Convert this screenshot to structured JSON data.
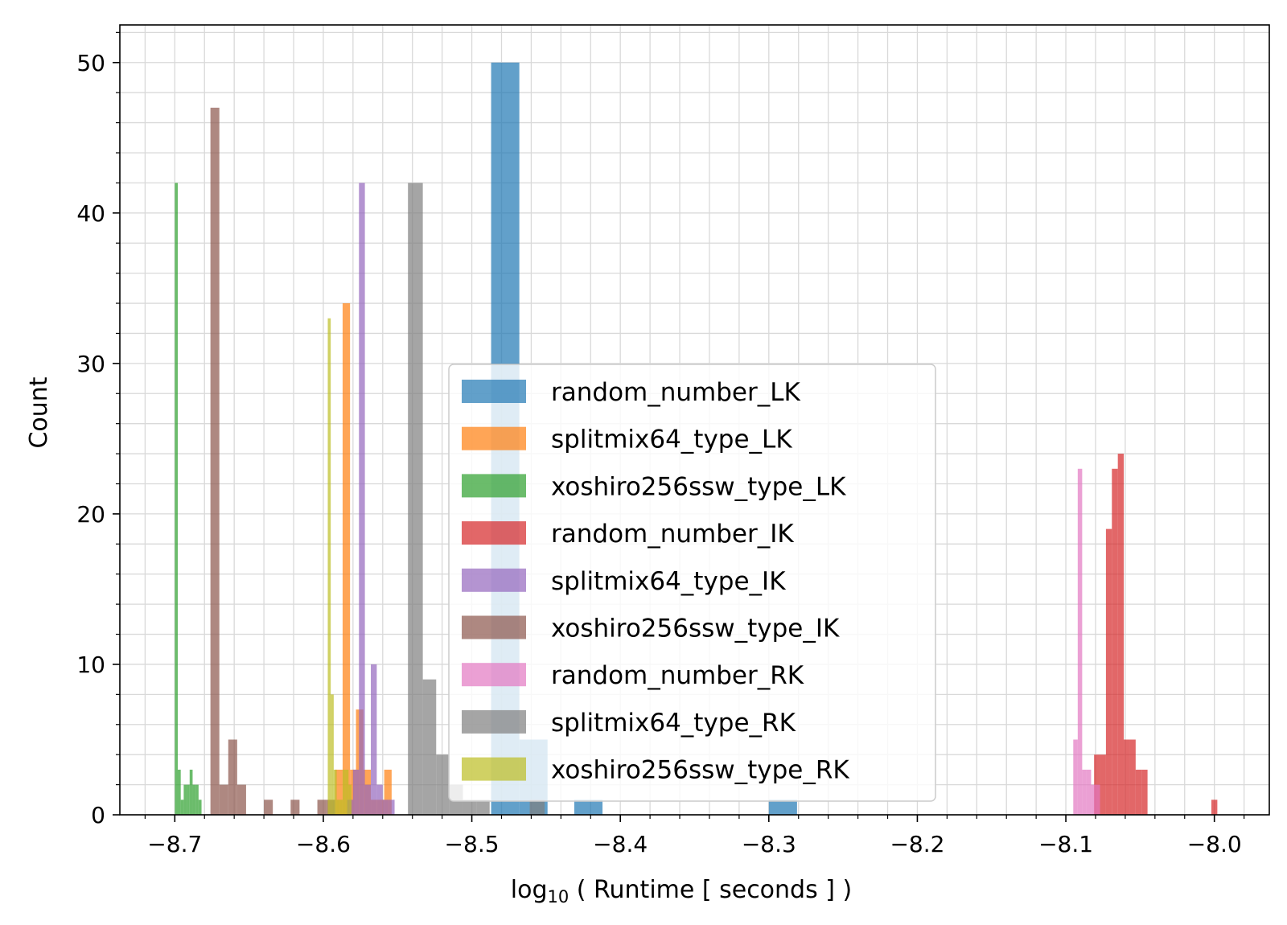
{
  "chart_data": {
    "type": "bar",
    "title": "",
    "xlabel": "log",
    "xlabel_sub": "10",
    "xlabel_rest": " ( Runtime [ seconds ] )",
    "ylabel": "Count",
    "xlim": [
      -8.737,
      -7.963
    ],
    "ylim": [
      0,
      52.5
    ],
    "xticks": [
      -8.7,
      -8.6,
      -8.5,
      -8.4,
      -8.3,
      -8.2,
      -8.1,
      -8.0
    ],
    "xtick_labels": [
      "−8.7",
      "−8.6",
      "−8.5",
      "−8.4",
      "−8.3",
      "−8.2",
      "−8.1",
      "−8.0"
    ],
    "yticks": [
      0,
      10,
      20,
      30,
      40,
      50
    ],
    "ytick_labels": [
      "0",
      "10",
      "20",
      "30",
      "40",
      "50"
    ],
    "grid": true,
    "legend_position": "center",
    "series": [
      {
        "name": "random_number_LK",
        "color": "#1f77b4",
        "bins": [
          [
            -8.487,
            -8.468,
            50
          ],
          [
            -8.468,
            -8.449,
            5
          ],
          [
            -8.431,
            -8.412,
            1
          ],
          [
            -8.3,
            -8.281,
            1
          ]
        ]
      },
      {
        "name": "splitmix64_type_LK",
        "color": "#ff7f0e",
        "bins": [
          [
            -8.592,
            -8.587,
            3
          ],
          [
            -8.587,
            -8.582,
            34
          ],
          [
            -8.582,
            -8.578,
            3
          ],
          [
            -8.578,
            -8.573,
            7
          ],
          [
            -8.573,
            -8.568,
            3
          ],
          [
            -8.568,
            -8.564,
            1
          ],
          [
            -8.564,
            -8.559,
            1
          ],
          [
            -8.559,
            -8.554,
            3
          ]
        ]
      },
      {
        "name": "xoshiro256ssw_type_LK",
        "color": "#2ca02c",
        "bins": [
          [
            -8.7,
            -8.698,
            42
          ],
          [
            -8.698,
            -8.696,
            3
          ],
          [
            -8.696,
            -8.694,
            1
          ],
          [
            -8.694,
            -8.692,
            2
          ],
          [
            -8.692,
            -8.69,
            2
          ],
          [
            -8.69,
            -8.688,
            3
          ],
          [
            -8.688,
            -8.686,
            2
          ],
          [
            -8.686,
            -8.684,
            2
          ],
          [
            -8.684,
            -8.682,
            1
          ]
        ]
      },
      {
        "name": "random_number_IK",
        "color": "#d62728",
        "bins": [
          [
            -8.081,
            -8.077,
            4
          ],
          [
            -8.077,
            -8.073,
            4
          ],
          [
            -8.073,
            -8.069,
            19
          ],
          [
            -8.069,
            -8.065,
            23
          ],
          [
            -8.065,
            -8.061,
            24
          ],
          [
            -8.061,
            -8.057,
            5
          ],
          [
            -8.057,
            -8.053,
            5
          ],
          [
            -8.053,
            -8.049,
            3
          ],
          [
            -8.049,
            -8.045,
            3
          ],
          [
            -8.002,
            -7.998,
            1
          ]
        ]
      },
      {
        "name": "splitmix64_type_IK",
        "color": "#9467bd",
        "bins": [
          [
            -8.584,
            -8.58,
            1
          ],
          [
            -8.58,
            -8.576,
            3
          ],
          [
            -8.576,
            -8.572,
            42
          ],
          [
            -8.572,
            -8.568,
            2
          ],
          [
            -8.568,
            -8.564,
            10
          ],
          [
            -8.564,
            -8.56,
            2
          ],
          [
            -8.56,
            -8.556,
            1
          ],
          [
            -8.556,
            -8.552,
            1
          ]
        ]
      },
      {
        "name": "xoshiro256ssw_type_IK",
        "color": "#8c564b",
        "bins": [
          [
            -8.676,
            -8.67,
            47
          ],
          [
            -8.67,
            -8.664,
            2
          ],
          [
            -8.664,
            -8.658,
            5
          ],
          [
            -8.658,
            -8.652,
            2
          ],
          [
            -8.64,
            -8.634,
            1
          ],
          [
            -8.622,
            -8.616,
            1
          ],
          [
            -8.604,
            -8.598,
            1
          ],
          [
            -8.598,
            -8.592,
            1
          ]
        ]
      },
      {
        "name": "random_number_RK",
        "color": "#e377c2",
        "bins": [
          [
            -8.095,
            -8.092,
            5
          ],
          [
            -8.092,
            -8.089,
            23
          ],
          [
            -8.089,
            -8.086,
            3
          ],
          [
            -8.086,
            -8.083,
            3
          ],
          [
            -8.083,
            -8.08,
            2
          ],
          [
            -8.08,
            -8.077,
            2
          ]
        ]
      },
      {
        "name": "splitmix64_type_RK",
        "color": "#7f7f7f",
        "bins": [
          [
            -8.543,
            -8.533,
            42
          ],
          [
            -8.533,
            -8.524,
            9
          ],
          [
            -8.524,
            -8.515,
            4
          ],
          [
            -8.515,
            -8.506,
            2
          ],
          [
            -8.506,
            -8.497,
            1
          ],
          [
            -8.497,
            -8.488,
            1
          ],
          [
            -8.461,
            -8.451,
            1
          ]
        ]
      },
      {
        "name": "xoshiro256ssw_type_RK",
        "color": "#bcbd22",
        "bins": [
          [
            -8.597,
            -8.595,
            33
          ],
          [
            -8.595,
            -8.593,
            8
          ],
          [
            -8.593,
            -8.591,
            3
          ],
          [
            -8.591,
            -8.589,
            1
          ],
          [
            -8.589,
            -8.587,
            1
          ],
          [
            -8.587,
            -8.585,
            3
          ],
          [
            -8.585,
            -8.583,
            3
          ],
          [
            -8.583,
            -8.581,
            2
          ]
        ]
      }
    ]
  }
}
